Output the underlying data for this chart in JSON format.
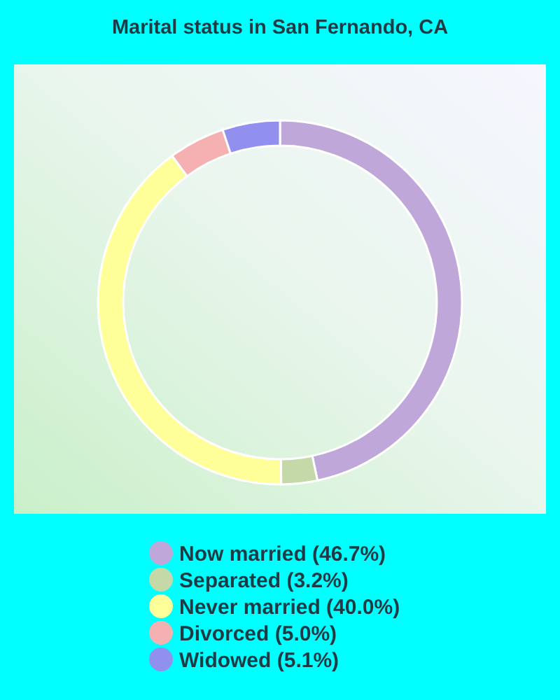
{
  "chart_data": {
    "type": "donut",
    "title": "Marital status in San Fernando, CA",
    "categories": [
      "Now married (46.7%)",
      "Separated (3.2%)",
      "Never married (40.0%)",
      "Divorced (5.0%)",
      "Widowed (5.1%)"
    ],
    "values": [
      46.7,
      3.2,
      40.0,
      5.0,
      5.1
    ],
    "colors": [
      "#bfa8d9",
      "#c5d9a8",
      "#ffff99",
      "#f5b1b1",
      "#9190ef"
    ],
    "legend": "bottom"
  }
}
